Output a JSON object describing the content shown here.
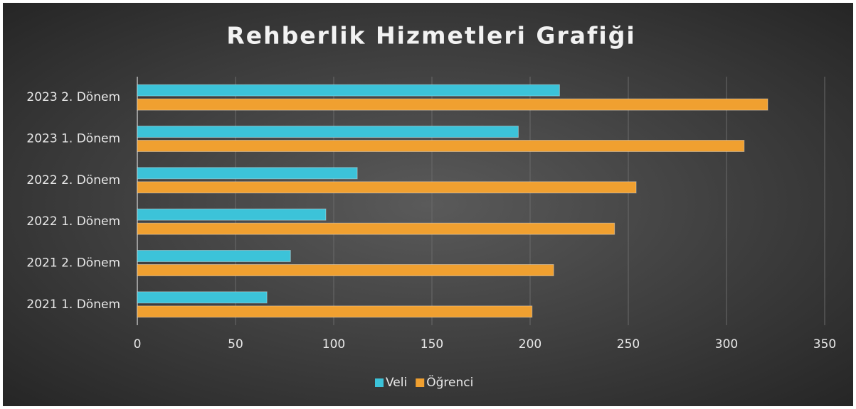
{
  "chart_data": {
    "type": "hbar",
    "title": "Rehberlik Hizmetleri Grafiği",
    "categories": [
      "2021 1. Dönem",
      "2021 2. Dönem",
      "2022 1. Dönem",
      "2022 2. Dönem",
      "2023 1. Dönem",
      "2023 2. Dönem"
    ],
    "series": [
      {
        "name": "Veli",
        "color": "#3cc3d9",
        "values": [
          66,
          78,
          96,
          112,
          194,
          215
        ]
      },
      {
        "name": "Öğrenci",
        "color": "#f0a030",
        "values": [
          201,
          212,
          243,
          254,
          309,
          321
        ]
      }
    ],
    "xlim": [
      0,
      350
    ],
    "xticks": [
      0,
      50,
      100,
      150,
      200,
      250,
      300,
      350
    ],
    "grid": true,
    "legend": "bottom"
  }
}
